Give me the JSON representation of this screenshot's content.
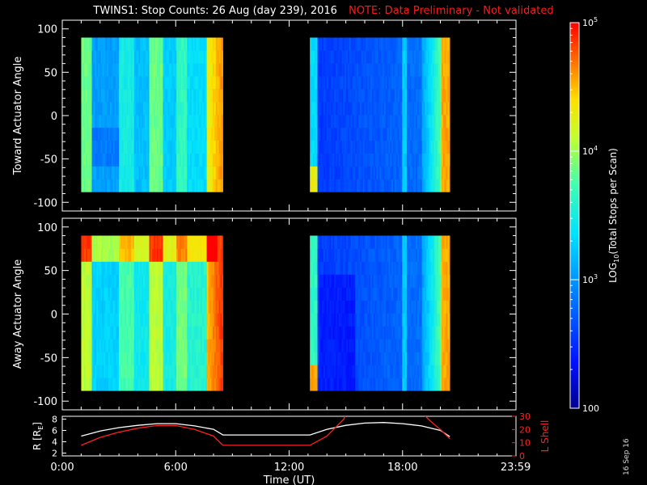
{
  "title": "TWINS1: Stop Counts: 26 Aug (day 239), 2016",
  "note": "NOTE: Data Preliminary - Not validated",
  "date_stamp": "16 Sep 16",
  "colors": {
    "background": "#000000",
    "axes": "#ffffff",
    "note": "#ff1a1a",
    "r_line": "#ffffff",
    "lshell_line": "#ff2020"
  },
  "chart_data": [
    {
      "type": "heatmap",
      "panel": "toward",
      "ylabel": "Toward Actuator Angle",
      "ylim": [
        -110,
        110
      ],
      "yticks": [
        100,
        50,
        0,
        -50,
        -100
      ],
      "ytick_labels": [
        "100",
        "50",
        "0",
        "-50",
        "-100"
      ],
      "xlim_hours": [
        0,
        24
      ],
      "data_intervals_hours": [
        [
          1.0,
          8.5
        ],
        [
          13.1,
          20.5
        ]
      ],
      "angle_range": [
        -88,
        90
      ],
      "colorscale": "log10 total stops per scan, 100 to 1e5"
    },
    {
      "type": "heatmap",
      "panel": "away",
      "ylabel": "Away Actuator Angle",
      "ylim": [
        -110,
        110
      ],
      "yticks": [
        100,
        50,
        0,
        -50,
        -100
      ],
      "ytick_labels": [
        "100",
        "50",
        "0",
        "-50",
        "-100"
      ],
      "xlim_hours": [
        0,
        24
      ],
      "data_intervals_hours": [
        [
          1.0,
          8.5
        ],
        [
          13.1,
          20.5
        ]
      ],
      "angle_range": [
        -88,
        90
      ],
      "colorscale": "log10 total stops per scan, 100 to 1e5"
    },
    {
      "type": "line",
      "panel": "orbit",
      "ylabel_left": "R [R",
      "ylabel_left_sub": "E",
      "ylabel_left_close": "]",
      "ylabel_right": "L Shell",
      "xlabel": "Time (UT)",
      "xticks_hours": [
        0,
        6,
        12,
        18,
        23.983
      ],
      "xtick_labels": [
        "0:00",
        "6:00",
        "12:00",
        "18:00",
        "23:59"
      ],
      "left_yticks": [
        2,
        4,
        6,
        8
      ],
      "left_ytick_labels": [
        "2",
        "4",
        "6",
        "8"
      ],
      "left_ylim": [
        1.5,
        8.5
      ],
      "right_yticks": [
        0,
        10,
        20,
        30
      ],
      "right_ytick_labels": [
        "0",
        "10",
        "20",
        "30"
      ],
      "right_ylim": [
        0,
        30
      ],
      "series": [
        {
          "name": "R",
          "axis": "left",
          "color": "#ffffff",
          "x": [
            1.0,
            2.0,
            3.0,
            4.0,
            5.0,
            6.0,
            7.0,
            8.0,
            8.5,
            13.1,
            14.0,
            15.0,
            16.0,
            17.0,
            18.0,
            19.0,
            20.0,
            20.5
          ],
          "y": [
            5.0,
            5.9,
            6.5,
            6.9,
            7.2,
            7.2,
            6.8,
            6.2,
            5.2,
            5.2,
            6.2,
            6.9,
            7.3,
            7.4,
            7.2,
            6.8,
            6.0,
            4.9
          ]
        },
        {
          "name": "L Shell",
          "axis": "right",
          "color": "#ff2020",
          "x": [
            1.0,
            2.0,
            3.0,
            4.0,
            5.0,
            6.0,
            7.0,
            8.0,
            8.5,
            13.1,
            14.0,
            14.9,
            15.0
          ],
          "y": [
            8,
            14,
            18,
            21,
            23,
            23,
            20,
            15,
            8,
            8,
            15,
            28,
            33
          ]
        },
        {
          "name": "L Shell (late)",
          "axis": "right",
          "color": "#ff2020",
          "x": [
            19.0,
            19.5,
            20.0,
            20.5
          ],
          "y": [
            33,
            26,
            20,
            13
          ]
        }
      ]
    },
    {
      "type": "colorbar",
      "label": "LOG",
      "label_sub": "10",
      "label_rest": "(Total Stops per Scan)",
      "ticks": [
        {
          "value": 100000,
          "label": "10",
          "sup": "5"
        },
        {
          "value": 10000,
          "label": "10",
          "sup": "4"
        },
        {
          "value": 1000,
          "label": "10",
          "sup": "3"
        },
        {
          "value": 100,
          "label": "100",
          "sup": ""
        }
      ],
      "range": [
        100,
        100000
      ],
      "scale": "log"
    }
  ]
}
